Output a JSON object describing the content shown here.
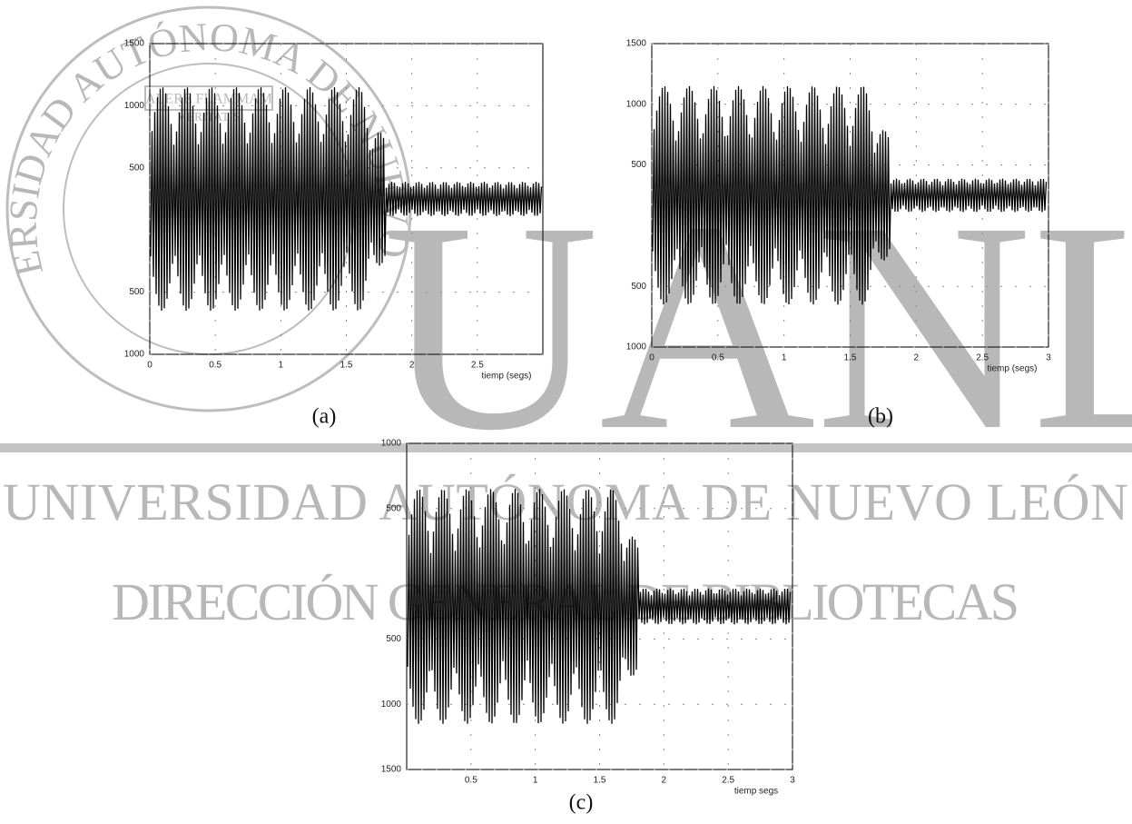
{
  "watermark": {
    "seal_text": "UNIVERSIDAD AUTÓNOMA DE NUEVO LEÓN",
    "motto_1": "ALERE FLAMMAM",
    "motto_2": "VERITATIS",
    "letters": "UANL",
    "line_1": "UNIVERSIDAD AUTÓNOMA DE NUEVO LEÓN",
    "line_2": "DIRECCIÓN GENERAL DE BIBLIOTECAS"
  },
  "figures": [
    {
      "caption": "(a)",
      "y_labels": [
        "1500",
        "1000",
        "500",
        "500",
        "1000"
      ],
      "x_labels": [
        "0",
        "0.5",
        "1",
        "1.5",
        "2",
        "2.5"
      ],
      "x_title": "tiemp (segs)"
    },
    {
      "caption": "(b)",
      "y_labels": [
        "1500",
        "1000",
        "500",
        "500",
        "1000"
      ],
      "x_labels": [
        "0",
        "0.5",
        "1",
        "1.5",
        "2",
        "2.5",
        "3"
      ],
      "x_title": "tiemp (segs)"
    },
    {
      "caption": "(c)",
      "y_labels": [
        "1000",
        "500",
        "500",
        "1000",
        "1500"
      ],
      "x_labels": [
        "0.5",
        "1",
        "1.5",
        "2",
        "2.5",
        "3"
      ],
      "x_title": "tiemp segs"
    }
  ]
}
